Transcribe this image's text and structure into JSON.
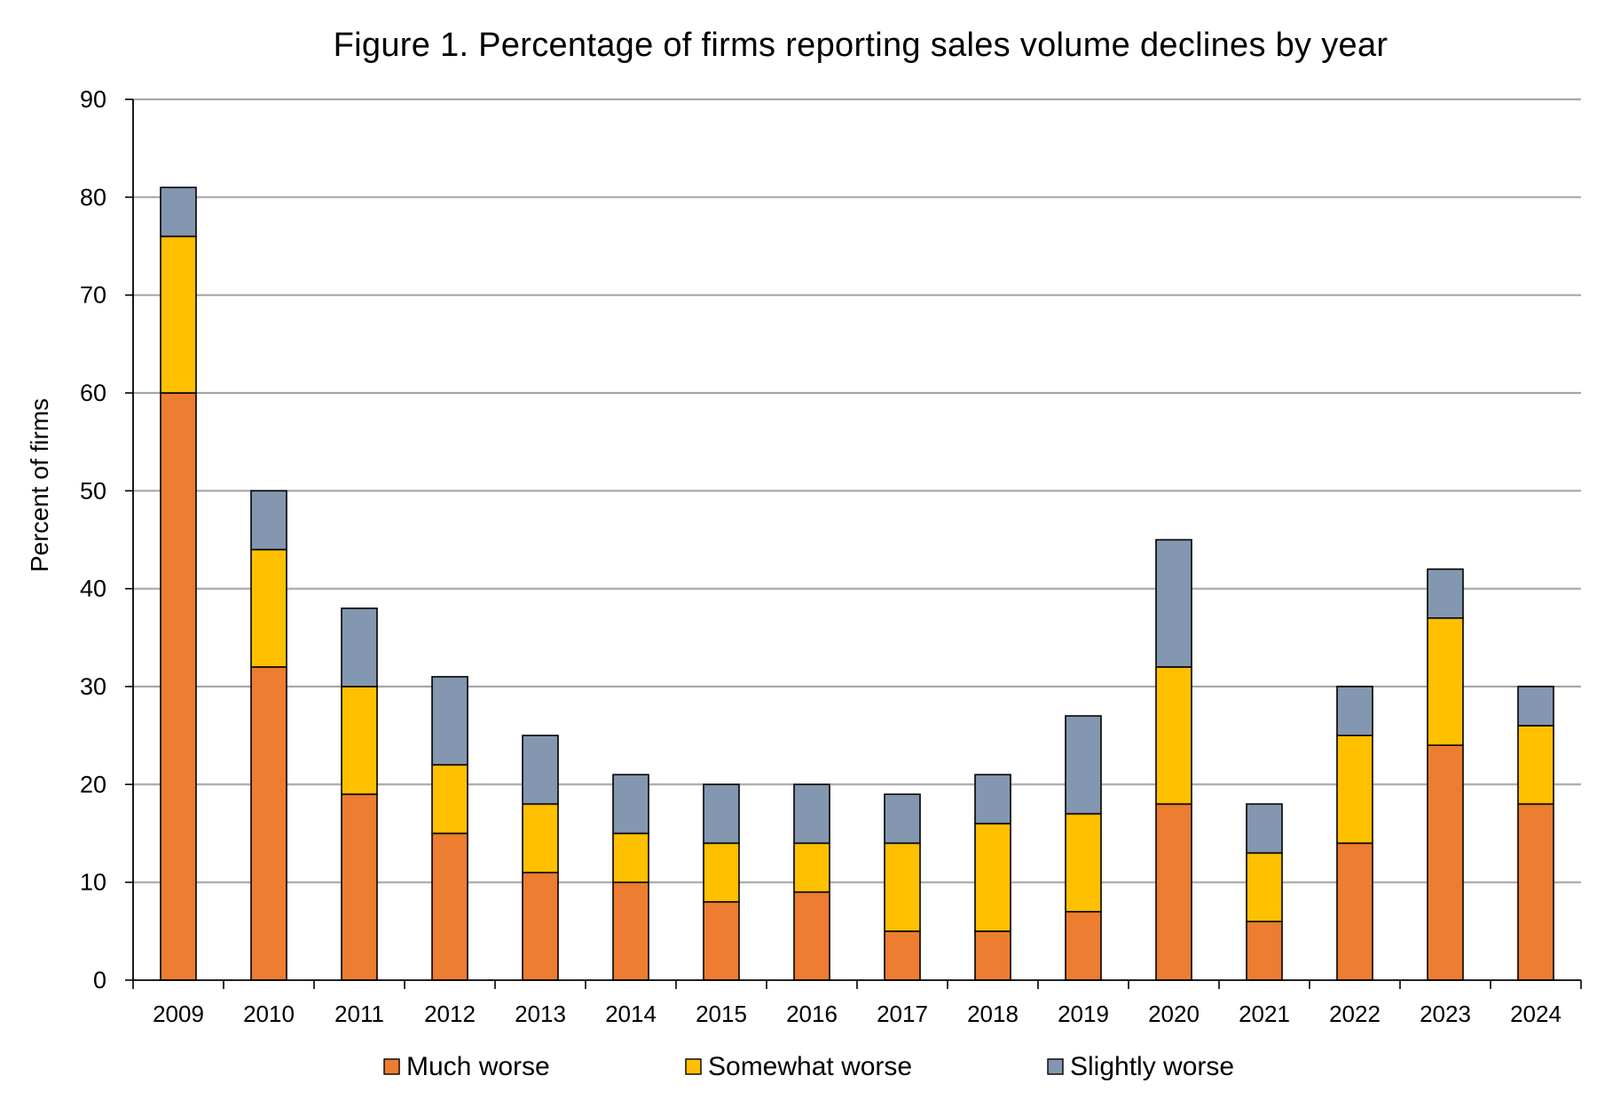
{
  "chart_data": {
    "type": "bar",
    "stacked": true,
    "title": "Figure 1. Percentage of firms reporting sales volume declines by year",
    "xlabel": "",
    "ylabel": "Percent of firms",
    "ylim": [
      0,
      90
    ],
    "yticks": [
      "0",
      "10",
      "20",
      "30",
      "40",
      "50",
      "60",
      "70",
      "80",
      "90"
    ],
    "grid": true,
    "legend_position": "bottom",
    "categories": [
      "2009",
      "2010",
      "2011",
      "2012",
      "2013",
      "2014",
      "2015",
      "2016",
      "2017",
      "2018",
      "2019",
      "2020",
      "2021",
      "2022",
      "2023",
      "2024"
    ],
    "series": [
      {
        "name": "Much worse",
        "color": "#ED7D31",
        "values": [
          60,
          32,
          19,
          15,
          11,
          10,
          8,
          9,
          5,
          5,
          7,
          18,
          6,
          14,
          24,
          18
        ]
      },
      {
        "name": "Somewhat worse",
        "color": "#FFC000",
        "values": [
          16,
          12,
          11,
          7,
          7,
          5,
          6,
          5,
          9,
          11,
          10,
          14,
          7,
          11,
          13,
          8
        ]
      },
      {
        "name": "Slightly worse",
        "color": "#8497B0",
        "values": [
          5,
          6,
          8,
          9,
          7,
          6,
          6,
          6,
          5,
          5,
          10,
          13,
          5,
          5,
          5,
          4
        ]
      }
    ]
  }
}
